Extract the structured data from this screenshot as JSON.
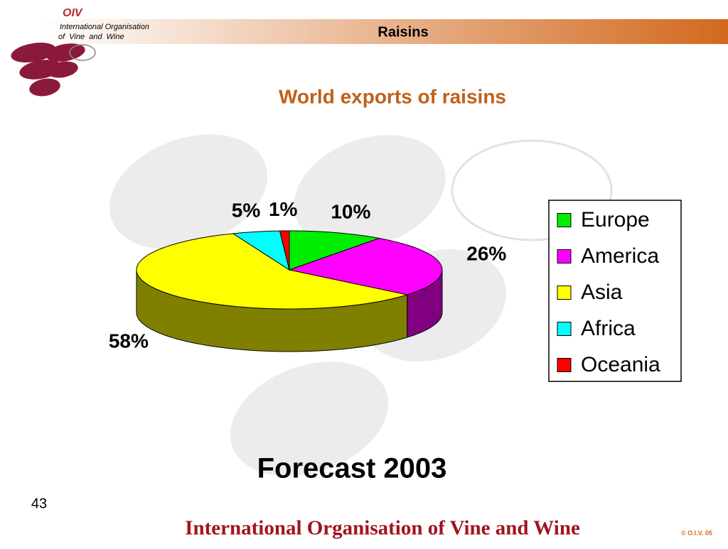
{
  "header": {
    "logo": "OIV",
    "org_line1": "International Organisation",
    "org_line2": "of  Vine  and  Wine",
    "title": "Raisins"
  },
  "chart_data": {
    "type": "pie",
    "title": "World exports of raisins",
    "subtitle": "Forecast 2003",
    "categories": [
      "Europe",
      "America",
      "Asia",
      "Africa",
      "Oceania"
    ],
    "values": [
      10,
      26,
      58,
      5,
      1
    ],
    "value_labels": [
      "10%",
      "26%",
      "58%",
      "5%",
      "1%"
    ],
    "colors": [
      "#00ee00",
      "#ff00ff",
      "#ffff00",
      "#00ffff",
      "#ff0000"
    ],
    "side_colors": [
      "#007700",
      "#800080",
      "#808000",
      "#008080",
      "#800000"
    ],
    "legend": "right"
  },
  "slide_number": 43,
  "footer": "International Organisation of Vine and Wine",
  "copyright": "© O.I.V. 05"
}
